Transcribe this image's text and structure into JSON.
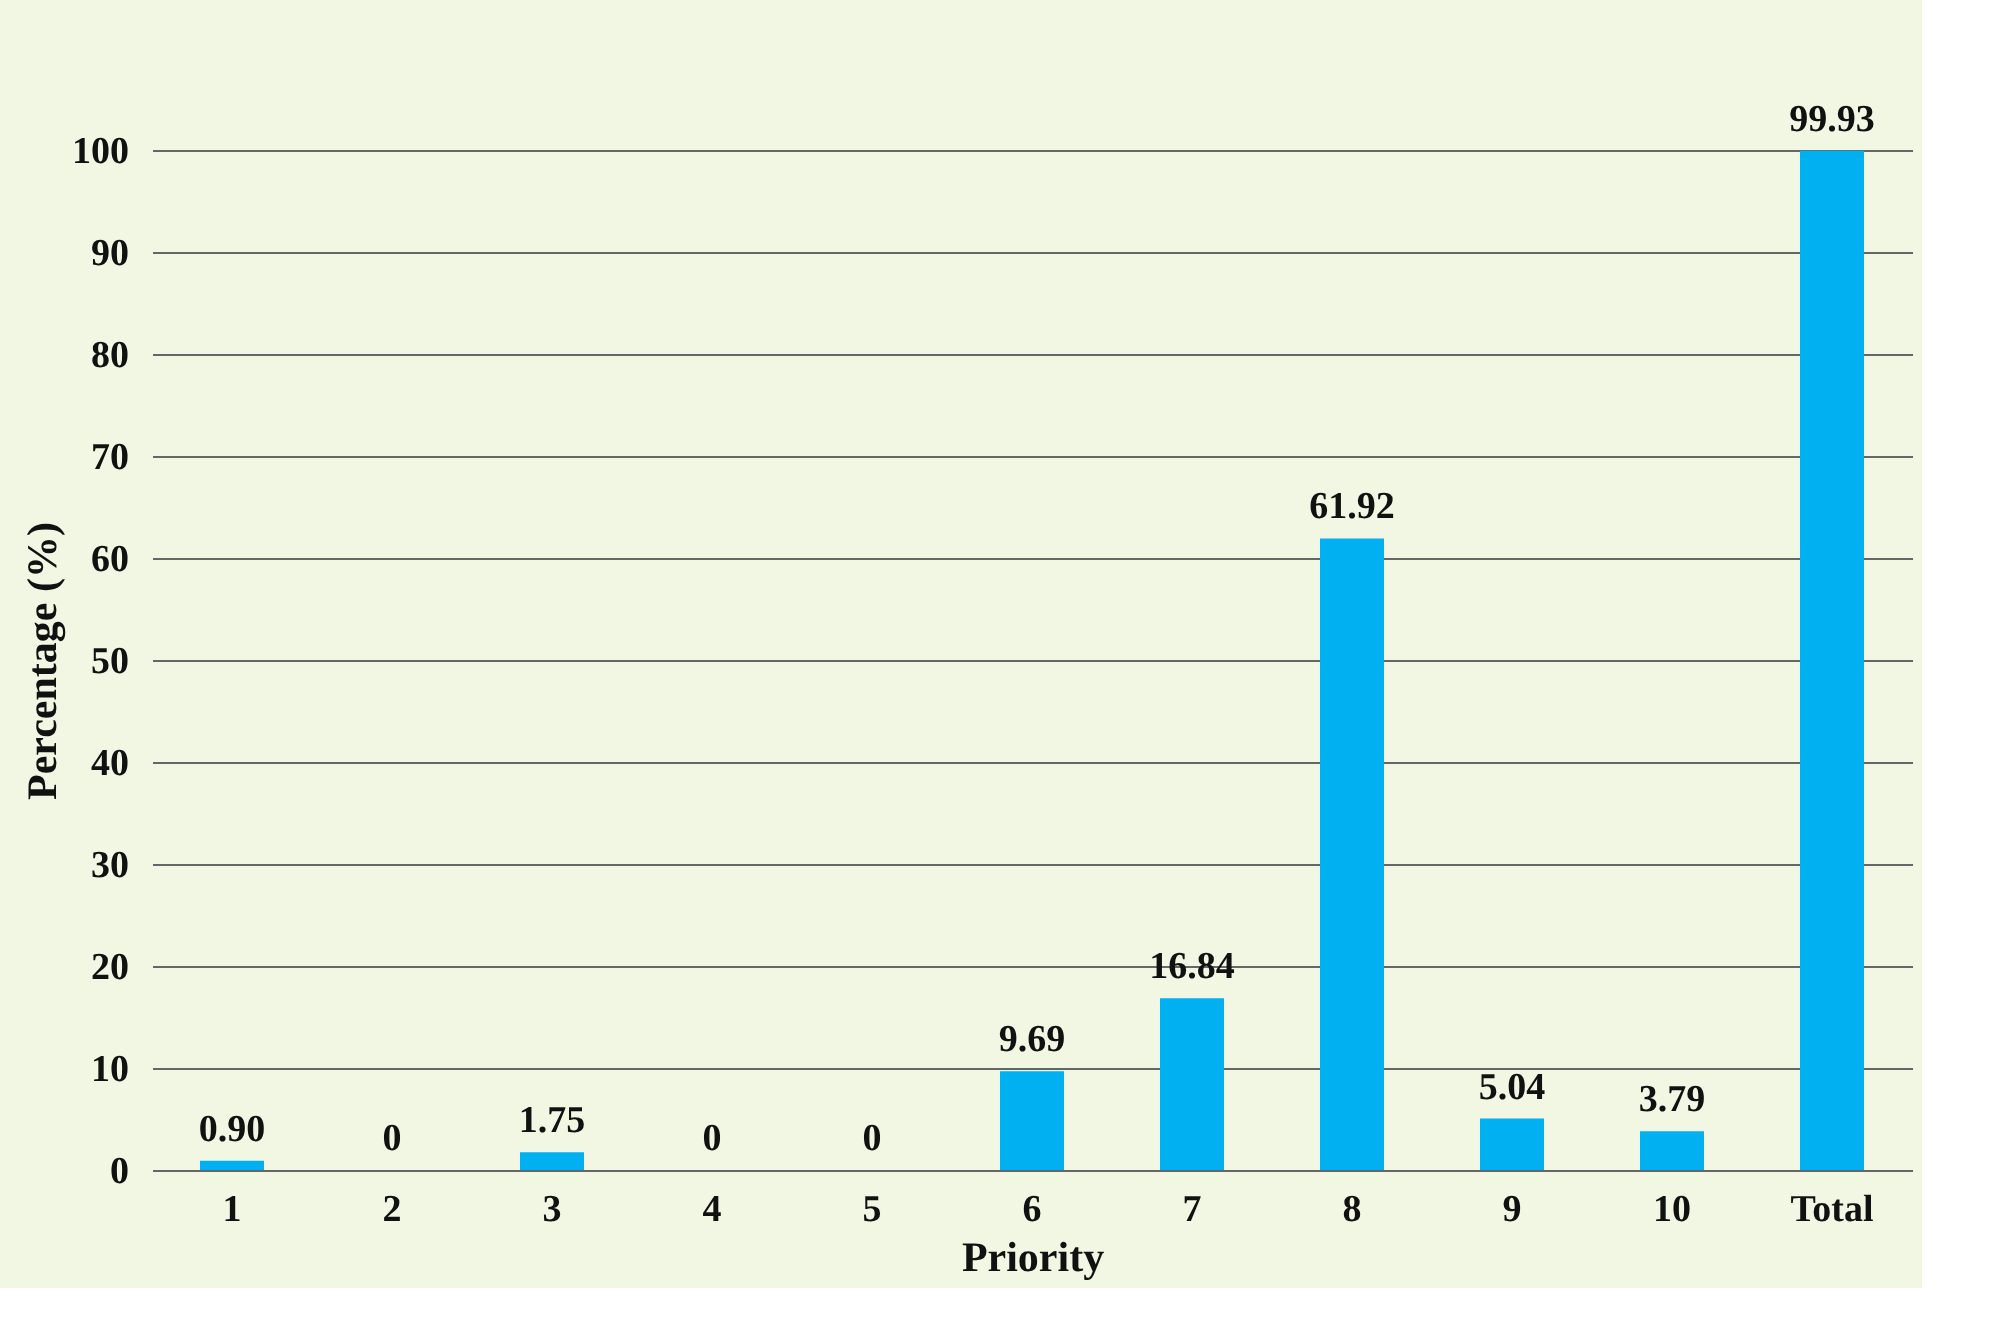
{
  "chart_data": {
    "type": "bar",
    "xlabel": "Priority",
    "ylabel": "Percentage (%)",
    "categories": [
      "1",
      "2",
      "3",
      "4",
      "5",
      "6",
      "7",
      "8",
      "9",
      "10",
      "Total"
    ],
    "values": [
      0.9,
      0,
      1.75,
      0,
      0,
      9.69,
      16.84,
      61.92,
      5.04,
      3.79,
      99.93
    ],
    "value_labels": [
      "0.90",
      "0",
      "1.75",
      "0",
      "0",
      "9.69",
      "16.84",
      "61.92",
      "5.04",
      "3.79",
      "99.93"
    ],
    "color": "#00b0f0",
    "ylim": [
      0,
      100
    ],
    "yticks": [
      0,
      10,
      20,
      30,
      40,
      50,
      60,
      70,
      80,
      90,
      100
    ],
    "grid": "y"
  }
}
